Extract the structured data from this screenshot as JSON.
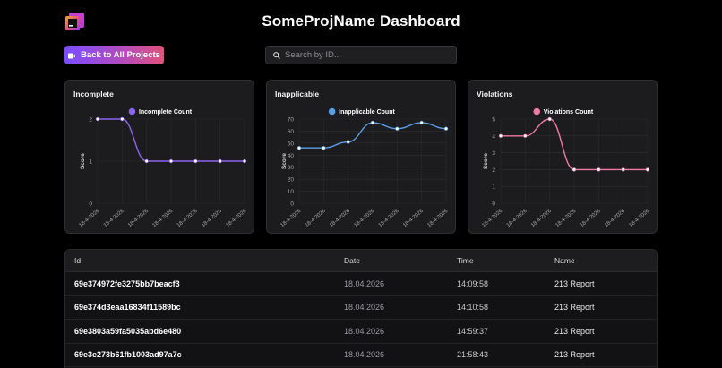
{
  "header": {
    "title": "SomeProjName Dashboard",
    "logo_icon": "app-logo-icon",
    "back_button_label": "Back to All Projects",
    "search_placeholder": "Search by ID..."
  },
  "colors": {
    "background": "#000000",
    "card": "#1c1c1f",
    "incomplete": "#8b63f0",
    "inapplicable": "#5b9ee8",
    "violations": "#f07aa3"
  },
  "chart_data": [
    {
      "type": "line",
      "title": "Incomplete",
      "ylabel": "Score",
      "ylim": [
        0,
        2
      ],
      "yticks": [
        "2",
        "1",
        "0"
      ],
      "x": [
        "18-4-2026",
        "18-4-2026",
        "18-4-2026",
        "18-4-2026",
        "18-4-2026",
        "18-4-2026",
        "18-4-2026"
      ],
      "series": [
        {
          "name": "Incomplete Count",
          "values": [
            2,
            2,
            1,
            1,
            1,
            1,
            1
          ]
        }
      ],
      "legend": "top-center",
      "grid": true
    },
    {
      "type": "line",
      "title": "Inapplicable",
      "ylabel": "Score",
      "ylim": [
        0,
        70
      ],
      "yticks": [
        "70",
        "60",
        "50",
        "40",
        "30",
        "20",
        "10",
        "0"
      ],
      "x": [
        "18-4-2026",
        "18-4-2026",
        "18-4-2026",
        "18-4-2026",
        "18-4-2026",
        "18-4-2026",
        "18-4-2026"
      ],
      "series": [
        {
          "name": "Inapplicable Count",
          "values": [
            46,
            46,
            51,
            67,
            62,
            67,
            62
          ]
        }
      ],
      "legend": "top-center",
      "grid": true
    },
    {
      "type": "line",
      "title": "Violations",
      "ylabel": "Score",
      "ylim": [
        0,
        5
      ],
      "yticks": [
        "5",
        "4",
        "3",
        "2",
        "1",
        "0"
      ],
      "x": [
        "18-4-2026",
        "18-4-2026",
        "18-4-2026",
        "18-4-2026",
        "18-4-2026",
        "18-4-2026",
        "18-4-2026"
      ],
      "series": [
        {
          "name": "Violations Count",
          "values": [
            4,
            4,
            5,
            2,
            2,
            2,
            2
          ]
        }
      ],
      "legend": "top-center",
      "grid": true
    }
  ],
  "table": {
    "columns": [
      "Id",
      "Date",
      "Time",
      "Name"
    ],
    "rows": [
      [
        "69e374972fe3275bb7beacf3",
        "18.04.2026",
        "14:09:58",
        "213 Report"
      ],
      [
        "69e374d3eaa16834f11589bc",
        "18.04.2026",
        "14:10:58",
        "213 Report"
      ],
      [
        "69e3803a59fa5035abd6e480",
        "18.04.2026",
        "14:59:37",
        "213 Report"
      ],
      [
        "69e3e273b61fb1003ad97a7c",
        "18.04.2026",
        "21:58:43",
        "213 Report"
      ]
    ]
  }
}
